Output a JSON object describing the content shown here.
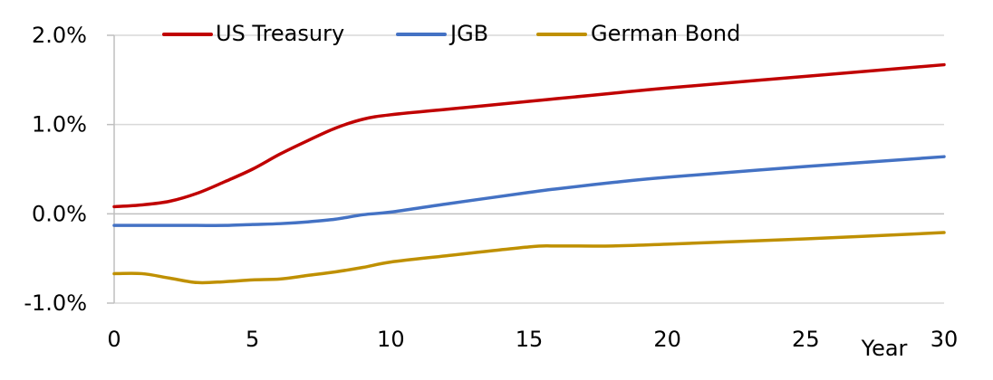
{
  "chart_data": {
    "type": "line",
    "title": "",
    "xlabel": "Year",
    "ylabel": "",
    "xlim": [
      0,
      30
    ],
    "ylim": [
      -1.0,
      2.0
    ],
    "x_ticks": [
      0,
      5,
      10,
      15,
      20,
      25,
      30
    ],
    "x_tick_labels": [
      "0",
      "5",
      "10",
      "15",
      "20",
      "25",
      "30"
    ],
    "y_ticks": [
      -1.0,
      0.0,
      1.0,
      2.0
    ],
    "y_tick_labels": [
      "-1.0%",
      "0.0%",
      "1.0%",
      "2.0%"
    ],
    "grid": {
      "horizontal": true,
      "vertical": false
    },
    "legend": {
      "position": "top"
    },
    "x": [
      0,
      1,
      2,
      3,
      4,
      5,
      6,
      7,
      8,
      9,
      10,
      12,
      15,
      16,
      18,
      20,
      25,
      30
    ],
    "series": [
      {
        "name": "US Treasury",
        "color": "#C00000",
        "values": [
          0.08,
          0.1,
          0.14,
          0.23,
          0.36,
          0.5,
          0.67,
          0.82,
          0.96,
          1.06,
          1.11,
          1.17,
          1.26,
          1.29,
          1.35,
          1.41,
          1.54,
          1.67
        ]
      },
      {
        "name": "JGB",
        "color": "#4472C4",
        "values": [
          -0.13,
          -0.13,
          -0.13,
          -0.13,
          -0.13,
          -0.12,
          -0.11,
          -0.09,
          -0.06,
          -0.01,
          0.02,
          0.11,
          0.24,
          0.28,
          0.35,
          0.41,
          0.53,
          0.64
        ]
      },
      {
        "name": "German Bond",
        "color": "#BF9000",
        "values": [
          -0.67,
          -0.67,
          -0.72,
          -0.77,
          -0.76,
          -0.74,
          -0.73,
          -0.69,
          -0.65,
          -0.6,
          -0.54,
          -0.47,
          -0.37,
          -0.36,
          -0.36,
          -0.34,
          -0.28,
          -0.21
        ]
      }
    ]
  }
}
